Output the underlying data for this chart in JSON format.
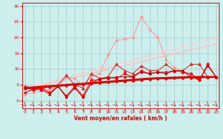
{
  "background_color": "#cceeed",
  "grid_color": "#aacccc",
  "x_label": "Vent moyen/en rafales ( km/h )",
  "x_ticks": [
    0,
    1,
    2,
    3,
    4,
    5,
    6,
    7,
    8,
    9,
    10,
    11,
    12,
    13,
    14,
    15,
    16,
    17,
    18,
    19,
    20,
    21,
    22,
    23
  ],
  "y_ticks": [
    0,
    5,
    10,
    15,
    20,
    25,
    30
  ],
  "ylim": [
    -2.5,
    31
  ],
  "xlim": [
    -0.3,
    23.3
  ],
  "lines": [
    {
      "x": [
        0,
        1,
        2,
        3,
        4,
        5,
        6,
        7,
        8,
        9,
        10,
        11,
        12,
        13,
        14,
        15,
        16,
        17,
        18,
        19,
        20,
        21,
        22,
        23
      ],
      "y": [
        3.5,
        4.2,
        4.8,
        5.4,
        6.1,
        6.7,
        7.3,
        7.9,
        8.6,
        9.2,
        9.8,
        10.4,
        11.1,
        11.7,
        12.3,
        12.9,
        13.6,
        14.2,
        14.8,
        15.4,
        16.1,
        16.7,
        17.3,
        17.9
      ],
      "color": "#ffbbbb",
      "lw": 1.0,
      "marker": null
    },
    {
      "x": [
        0,
        1,
        2,
        3,
        4,
        5,
        6,
        7,
        8,
        9,
        10,
        11,
        12,
        13,
        14,
        15,
        16,
        17,
        18,
        19,
        20,
        21,
        22,
        23
      ],
      "y": [
        3.8,
        4.5,
        5.2,
        5.9,
        6.6,
        7.3,
        8.0,
        8.7,
        9.4,
        10.0,
        10.7,
        11.4,
        12.1,
        12.8,
        13.5,
        14.2,
        14.9,
        15.6,
        16.3,
        17.0,
        17.7,
        18.4,
        19.1,
        19.8
      ],
      "color": "#ffcccc",
      "lw": 1.0,
      "marker": null
    },
    {
      "x": [
        0,
        1,
        2,
        3,
        4,
        5,
        6,
        7,
        8,
        9,
        10,
        11,
        12,
        13,
        14,
        15,
        16,
        17,
        18,
        19,
        20,
        21,
        22,
        23
      ],
      "y": [
        2.0,
        2.5,
        3.0,
        3.5,
        4.5,
        7.5,
        7.0,
        5.0,
        7.5,
        8.5,
        14.5,
        19.0,
        19.5,
        20.0,
        26.5,
        22.5,
        20.0,
        13.0,
        10.5,
        9.0,
        7.5,
        7.0,
        7.5,
        7.5
      ],
      "color": "#ff9999",
      "lw": 0.8,
      "marker": "o",
      "ms": 2.0
    },
    {
      "x": [
        0,
        1,
        2,
        3,
        4,
        5,
        6,
        7,
        8,
        9,
        10,
        11,
        12,
        13,
        14,
        15,
        16,
        17,
        18,
        19,
        20,
        21,
        22,
        23
      ],
      "y": [
        4.5,
        4.0,
        3.5,
        4.5,
        5.0,
        8.0,
        5.0,
        4.0,
        8.5,
        7.0,
        7.5,
        11.5,
        9.5,
        8.5,
        11.0,
        9.5,
        9.5,
        11.5,
        9.5,
        9.5,
        11.5,
        11.5,
        7.5,
        7.5
      ],
      "color": "#cc3333",
      "lw": 0.8,
      "marker": "^",
      "ms": 2.5
    },
    {
      "x": [
        0,
        1,
        2,
        3,
        4,
        5,
        6,
        7,
        8,
        9,
        10,
        11,
        12,
        13,
        14,
        15,
        16,
        17,
        18,
        19,
        20,
        21,
        22,
        23
      ],
      "y": [
        4.0,
        3.5,
        4.0,
        2.5,
        4.5,
        1.5,
        4.5,
        1.5,
        6.5,
        6.5,
        7.5,
        7.0,
        8.5,
        7.5,
        9.5,
        8.5,
        9.0,
        9.0,
        9.5,
        9.0,
        8.5,
        6.5,
        11.5,
        7.5
      ],
      "color": "#ee1111",
      "lw": 0.8,
      "marker": "P",
      "ms": 2.5
    },
    {
      "x": [
        0,
        1,
        2,
        3,
        4,
        5,
        6,
        7,
        8,
        9,
        10,
        11,
        12,
        13,
        14,
        15,
        16,
        17,
        18,
        19,
        20,
        21,
        22,
        23
      ],
      "y": [
        2.5,
        3.5,
        3.5,
        2.0,
        4.5,
        1.0,
        4.0,
        1.0,
        5.5,
        7.0,
        7.0,
        7.5,
        7.5,
        7.5,
        9.0,
        8.5,
        9.0,
        8.5,
        9.5,
        9.5,
        7.5,
        6.5,
        11.0,
        7.5
      ],
      "color": "#bb0000",
      "lw": 0.8,
      "marker": "s",
      "ms": 2.0
    },
    {
      "x": [
        0,
        1,
        2,
        3,
        4,
        5,
        6,
        7,
        8,
        9,
        10,
        11,
        12,
        13,
        14,
        15,
        16,
        17,
        18,
        19,
        20,
        21,
        22,
        23
      ],
      "y": [
        4.0,
        4.2,
        4.4,
        4.6,
        4.8,
        5.0,
        5.2,
        5.4,
        5.6,
        5.8,
        6.0,
        6.2,
        6.4,
        6.6,
        6.8,
        7.0,
        7.1,
        7.2,
        7.3,
        7.4,
        7.5,
        7.5,
        7.5,
        7.5
      ],
      "color": "#cc0000",
      "lw": 1.8,
      "marker": null
    },
    {
      "x": [
        0,
        1,
        2,
        3,
        4,
        5,
        6,
        7,
        8,
        9,
        10,
        11,
        12,
        13,
        14,
        15,
        16,
        17,
        18,
        19,
        20,
        21,
        22,
        23
      ],
      "y": [
        3.8,
        4.0,
        4.2,
        4.4,
        4.6,
        4.8,
        5.0,
        5.2,
        5.4,
        5.6,
        5.8,
        6.0,
        6.2,
        6.4,
        6.6,
        6.8,
        7.0,
        7.0,
        7.1,
        7.2,
        7.3,
        7.3,
        7.4,
        7.4
      ],
      "color": "#dd0000",
      "lw": 1.5,
      "marker": "D",
      "ms": 2.0
    }
  ],
  "axis_label_color": "#cc0000",
  "tick_color": "#cc0000",
  "tick_fontsize": 4.5,
  "xlabel_fontsize": 5.5
}
